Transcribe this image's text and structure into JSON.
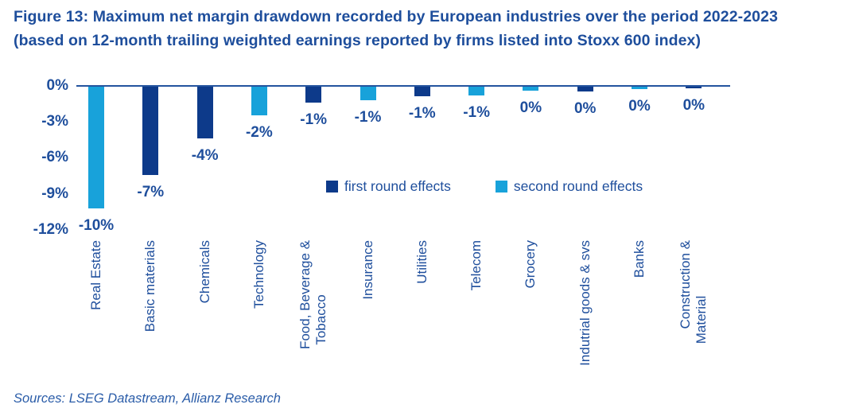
{
  "figure": {
    "title_line1": "Figure 13: Maximum net margin drawdown recorded by European industries over the period 2022-2023",
    "title_line2": "(based on 12-month trailing weighted earnings reported by firms listed into Stoxx 600 index)",
    "source_note": "Sources: LSEG Datastream, Allianz Research"
  },
  "legend": {
    "items": [
      {
        "label": "first round effects",
        "color": "#0D3A8A"
      },
      {
        "label": "second round effects",
        "color": "#18A2DA"
      }
    ]
  },
  "colors": {
    "text_blue": "#1E4E9C",
    "axis_line": "#24549E",
    "first_round": "#0D3A8A",
    "second_round": "#18A2DA"
  },
  "chart_data": {
    "type": "bar",
    "title": "Maximum net margin drawdown recorded by European industries over the period 2022-2023",
    "subtitle": "(based on 12-month trailing weighted earnings reported by firms listed into Stoxx 600 index)",
    "unit": "%",
    "ylim": [
      -12,
      0
    ],
    "yticks": [
      "0%",
      "-3%",
      "-6%",
      "-9%",
      "-12%"
    ],
    "grid": false,
    "legend_position": "center-right",
    "legend_entries": [
      "first round effects",
      "second round effects"
    ],
    "bars": [
      {
        "category": "Real Estate",
        "lines": [
          "Real Estate"
        ],
        "series": "second round effects",
        "value_pct": -10.1,
        "label": "-10%"
      },
      {
        "category": "Basic materials",
        "lines": [
          "Basic materials"
        ],
        "series": "first round effects",
        "value_pct": -7.3,
        "label": "-7%"
      },
      {
        "category": "Chemicals",
        "lines": [
          "Chemicals"
        ],
        "series": "first round effects",
        "value_pct": -4.3,
        "label": "-4%"
      },
      {
        "category": "Technology",
        "lines": [
          "Technology"
        ],
        "series": "second round effects",
        "value_pct": -2.4,
        "label": "-2%"
      },
      {
        "category": "Food, Beverage & Tobacco",
        "lines": [
          "Food, Beverage &",
          "Tobacco"
        ],
        "series": "first round effects",
        "value_pct": -1.3,
        "label": "-1%"
      },
      {
        "category": "Insurance",
        "lines": [
          "Insurance"
        ],
        "series": "second round effects",
        "value_pct": -1.1,
        "label": "-1%"
      },
      {
        "category": "Utilities",
        "lines": [
          "Utilities"
        ],
        "series": "first round effects",
        "value_pct": -0.8,
        "label": "-1%"
      },
      {
        "category": "Telecom",
        "lines": [
          "Telecom"
        ],
        "series": "second round effects",
        "value_pct": -0.7,
        "label": "-1%"
      },
      {
        "category": "Grocery",
        "lines": [
          "Grocery"
        ],
        "series": "second round effects",
        "value_pct": -0.31,
        "label": "0%"
      },
      {
        "category": "Indutrial goods & svs",
        "lines": [
          "Indutrial goods & svs"
        ],
        "series": "first round effects",
        "value_pct": -0.38,
        "label": "0%"
      },
      {
        "category": "Banks",
        "lines": [
          "Banks"
        ],
        "series": "second round effects",
        "value_pct": -0.22,
        "label": "0%"
      },
      {
        "category": "Construction & Material",
        "lines": [
          "Construction &",
          "Material"
        ],
        "series": "first round effects",
        "value_pct": -0.15,
        "label": "0%"
      }
    ]
  }
}
